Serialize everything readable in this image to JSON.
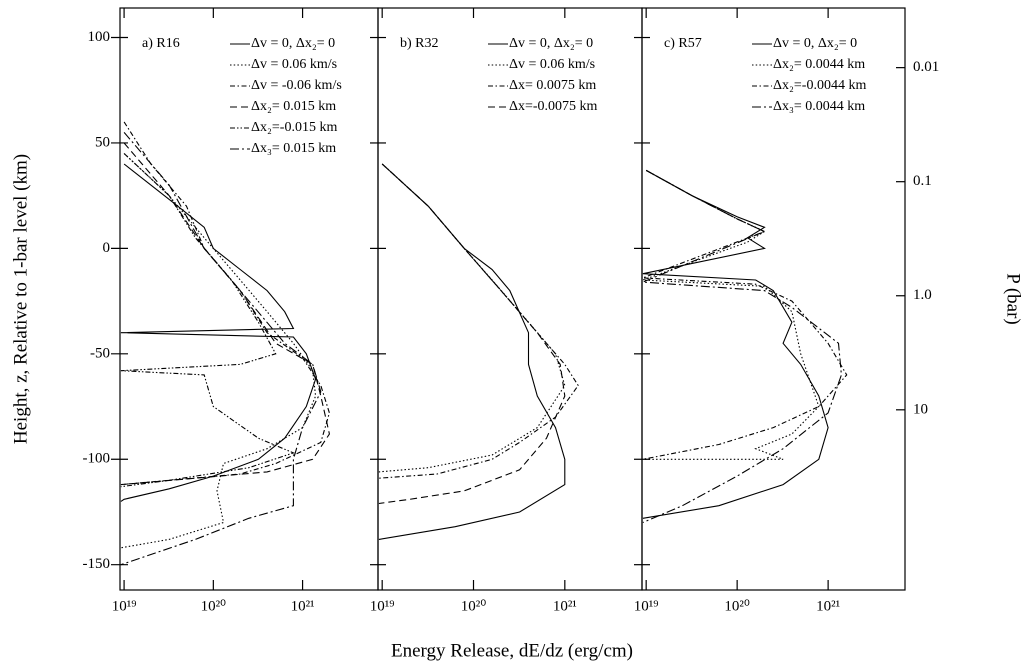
{
  "chart_data": [
    {
      "type": "line",
      "title": "a) R16",
      "ylabel": "Height, z, Relative to 1-bar level (km)",
      "ylim": [
        -162,
        114
      ],
      "yticks": [
        -150,
        -100,
        -50,
        0,
        50,
        100
      ],
      "xlim": [
        9e+18,
        7e+21
      ],
      "xlog": true,
      "xticks": [
        {
          "value": 1e+19,
          "label": "10¹⁹"
        },
        {
          "value": 1e+20,
          "label": "10²⁰"
        },
        {
          "value": 1e+21,
          "label": "10²¹"
        }
      ],
      "series": [
        {
          "name": "Δv = 0, Δx₂= 0",
          "color": "#000000",
          "dash": "solid",
          "x": [
            1e+19,
            2e+19,
            4e+19,
            7.9e+19,
            1e+20,
            2e+20,
            4e+20,
            6.3e+20,
            7.9e+20,
            9.2e+18,
            7.9e+20,
            1.1e+21,
            1.4e+21,
            1.1e+21,
            6.3e+20,
            3.2e+20,
            1e+20,
            3.2e+19,
            1e+19,
            9.2e+18
          ],
          "values": [
            40,
            30,
            20,
            10,
            0,
            -10,
            -20,
            -30,
            -38,
            -40,
            -42,
            -50,
            -62,
            -75,
            -90,
            -100,
            -108,
            -114,
            -119,
            -120
          ]
        },
        {
          "name": "Δv = 0.06 km/s",
          "color": "#000000",
          "dash": "dotted",
          "x": [
            1e+19,
            3.2e+19,
            7.9e+19,
            2e+20,
            4e+20,
            7.9e+20,
            1.3e+21,
            1.4e+21,
            1e+21,
            4e+20,
            1.3e+20,
            1.1e+20,
            1.3e+20,
            3.2e+19,
            9.2e+18
          ],
          "values": [
            45,
            25,
            5,
            -15,
            -30,
            -45,
            -58,
            -70,
            -85,
            -95,
            -102,
            -115,
            -130,
            -138,
            -142
          ]
        },
        {
          "name": "Δv = -0.06 km/s",
          "color": "#000000",
          "dash": "dashdot",
          "x": [
            1e+19,
            2e+19,
            5e+19,
            7.9e+19,
            2e+20,
            4e+20,
            1e+21,
            1.6e+21,
            2e+21,
            1.6e+21,
            5e+20,
            2e+20,
            3.2e+19,
            9.2e+18
          ],
          "values": [
            60,
            40,
            20,
            0,
            -20,
            -40,
            -52,
            -65,
            -78,
            -92,
            -102,
            -107,
            -110,
            -112
          ]
        },
        {
          "name": "Δx₂= 0.015 km",
          "color": "#000000",
          "dash": "dashed",
          "x": [
            1e+19,
            3.2e+19,
            7.9e+19,
            2e+20,
            5e+20,
            1.3e+21,
            1.6e+21,
            2e+21,
            1.3e+21,
            4e+20,
            6.3e+19,
            9.2e+18
          ],
          "values": [
            50,
            25,
            0,
            -20,
            -45,
            -55,
            -70,
            -88,
            -100,
            -106,
            -109,
            -112
          ]
        },
        {
          "name": "Δx₂=-0.015 km",
          "color": "#000000",
          "dash": "dashdotdot",
          "x": [
            1e+19,
            3.2e+19,
            6.3e+19,
            1.6e+20,
            3.2e+20,
            5e+20,
            2e+20,
            9.2e+18,
            7.9e+19,
            1e+20,
            3.2e+20,
            7.9e+20,
            2.5e+20,
            3.2e+19,
            9.2e+18
          ],
          "values": [
            45,
            25,
            5,
            -15,
            -35,
            -50,
            -55,
            -58,
            -60,
            -75,
            -90,
            -97,
            -104,
            -110,
            -113
          ]
        },
        {
          "name": "Δx₃=  0.015 km",
          "color": "#000000",
          "dash": "longdashdot",
          "x": [
            1e+19,
            3.2e+19,
            7.9e+19,
            2e+20,
            6.3e+20,
            1.3e+21,
            1.6e+21,
            1e+21,
            7.9e+20,
            7.9e+20,
            2.5e+20,
            6.3e+19,
            9.2e+18
          ],
          "values": [
            55,
            30,
            0,
            -20,
            -45,
            -55,
            -68,
            -85,
            -100,
            -122,
            -128,
            -138,
            -150
          ]
        }
      ]
    },
    {
      "type": "line",
      "title": "b) R32",
      "xlabel": "Energy Release, dE/dz (erg/cm)",
      "xlim": [
        9e+18,
        7e+21
      ],
      "xlog": true,
      "xticks": [
        {
          "value": 1e+19,
          "label": "10¹⁹"
        },
        {
          "value": 1e+20,
          "label": "10²⁰"
        },
        {
          "value": 1e+21,
          "label": "10²¹"
        }
      ],
      "series": [
        {
          "name": "Δv = 0, Δx₂= 0",
          "color": "#000000",
          "dash": "solid",
          "x": [
            1e+19,
            3.2e+19,
            7.9e+19,
            1.6e+20,
            2.5e+20,
            4e+20,
            4e+20,
            5e+20,
            7.9e+20,
            1e+21,
            1e+21,
            3.2e+20,
            6.3e+19,
            9.2e+18
          ],
          "values": [
            40,
            20,
            0,
            -10,
            -20,
            -40,
            -55,
            -70,
            -85,
            -100,
            -112,
            -125,
            -132,
            -138
          ]
        },
        {
          "name": "Δv = 0.06 km/s",
          "color": "#000000",
          "dash": "dotted",
          "x": [
            1e+19,
            3.2e+19,
            7.9e+19,
            1.6e+20,
            4e+20,
            7.9e+20,
            1e+21,
            5e+20,
            1.6e+20,
            3.2e+19,
            9.2e+18
          ],
          "values": [
            40,
            20,
            0,
            -15,
            -35,
            -50,
            -65,
            -85,
            -98,
            -104,
            -106
          ]
        },
        {
          "name": "Δx= 0.0075 km",
          "color": "#000000",
          "dash": "dashdot",
          "x": [
            1e+19,
            3.2e+19,
            7.9e+19,
            2e+20,
            5e+20,
            1e+21,
            1.4e+21,
            7.9e+20,
            3.2e+20,
            1.6e+20,
            4e+19,
            9.2e+18
          ],
          "values": [
            40,
            20,
            0,
            -20,
            -40,
            -55,
            -65,
            -80,
            -92,
            -100,
            -107,
            -109
          ]
        },
        {
          "name": "Δx=-0.0075 km",
          "color": "#000000",
          "dash": "dashed",
          "x": [
            1e+19,
            3.2e+19,
            7.9e+19,
            2e+20,
            5e+20,
            8.9e+20,
            1e+21,
            6.3e+20,
            3.2e+20,
            7.9e+19,
            2e+19,
            9.2e+18
          ],
          "values": [
            40,
            20,
            0,
            -20,
            -40,
            -55,
            -70,
            -90,
            -105,
            -115,
            -119,
            -121
          ]
        }
      ]
    },
    {
      "type": "line",
      "title": "c) R57",
      "y2label": "P (bar)",
      "y2lim": [
        0.003,
        380
      ],
      "y2log": true,
      "y2_inverted": true,
      "y2ticks": [
        0.01,
        0.1,
        {
          "value": 1,
          "label": "1.0"
        },
        10
      ],
      "xlim": [
        9e+18,
        7e+21
      ],
      "xlog": true,
      "xticks": [
        {
          "value": 1e+19,
          "label": "10¹⁹"
        },
        {
          "value": 1e+20,
          "label": "10²⁰"
        },
        {
          "value": 1e+21,
          "label": "10²¹"
        }
      ],
      "series": [
        {
          "name": "Δv = 0, Δx₂= 0",
          "color": "#000000",
          "dash": "solid",
          "x": [
            1e+19,
            3.2e+19,
            1e+20,
            2e+20,
            1.3e+20,
            2e+20,
            9.2e+18,
            1.6e+20,
            2.5e+20,
            4e+20,
            3.2e+20,
            5e+20,
            7.9e+20,
            1e+21,
            7.9e+20,
            3.2e+20,
            6.3e+19,
            9.2e+18
          ],
          "values": [
            37,
            25,
            15,
            10,
            5,
            0,
            -12,
            -15,
            -20,
            -35,
            -45,
            -55,
            -70,
            -85,
            -100,
            -112,
            -122,
            -128
          ]
        },
        {
          "name": "Δx₂= 0.0044 km",
          "color": "#000000",
          "dash": "dotted",
          "x": [
            1e+19,
            3.2e+19,
            1e+20,
            2e+20,
            1.3e+20,
            9.2e+18,
            2e+20,
            4e+20,
            5e+20,
            7.9e+20,
            4e+20,
            1.6e+20,
            3.2e+20,
            4e+19,
            1.6e+19,
            9.2e+18
          ],
          "values": [
            37,
            25,
            14,
            8,
            3,
            -15,
            -18,
            -30,
            -50,
            -75,
            -88,
            -95,
            -100,
            -100,
            -100,
            -100
          ]
        },
        {
          "name": "Δx₂=-0.0044 km",
          "color": "#000000",
          "dash": "dashdot",
          "x": [
            1e+19,
            3.2e+19,
            1e+20,
            2e+20,
            9.2e+18,
            1.6e+20,
            4e+20,
            1e+21,
            1.6e+21,
            7.9e+20,
            2.5e+20,
            6.3e+19,
            9.2e+18
          ],
          "values": [
            37,
            25,
            14,
            8,
            -14,
            -17,
            -25,
            -45,
            -60,
            -75,
            -85,
            -93,
            -100
          ]
        },
        {
          "name": "Δx₃= 0.0044 km",
          "color": "#000000",
          "dash": "longdashdot",
          "x": [
            1e+19,
            3.2e+19,
            1e+20,
            2e+20,
            9.2e+18,
            2e+20,
            4e+20,
            1.3e+21,
            1.4e+21,
            1e+21,
            3.2e+20,
            1e+20,
            2.5e+19,
            9.2e+18
          ],
          "values": [
            37,
            25,
            14,
            8,
            -16,
            -20,
            -28,
            -45,
            -60,
            -78,
            -95,
            -108,
            -122,
            -130
          ]
        }
      ]
    }
  ]
}
